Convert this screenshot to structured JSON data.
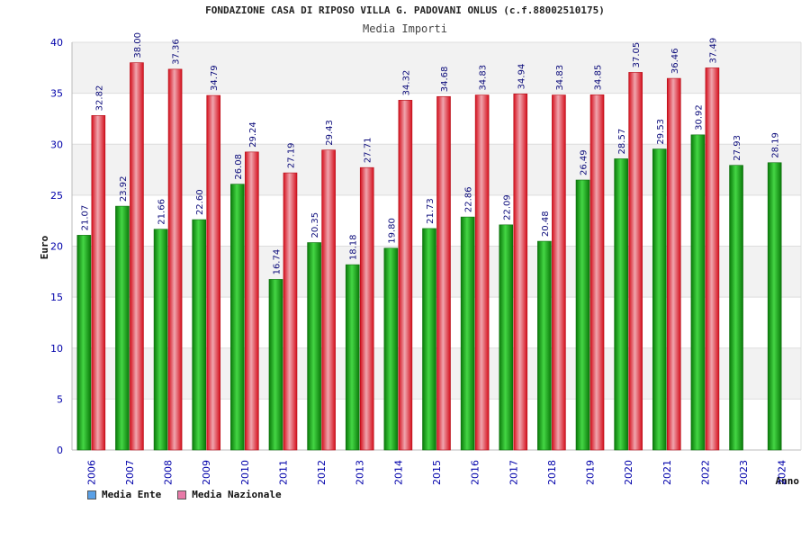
{
  "title": "FONDAZIONE CASA DI RIPOSO VILLA G. PADOVANI ONLUS (c.f.88002510175)",
  "subtitle": "Media Importi",
  "colors": {
    "ente": "#19b019",
    "nazionale": "#e8202a",
    "legend_ente": "#5aa0e6",
    "legend_nazionale": "#e87aa8",
    "axis_text": "#0000aa"
  },
  "legend": [
    {
      "label": "Media Ente"
    },
    {
      "label": "Media Nazionale"
    }
  ],
  "chart_data": {
    "type": "bar",
    "xlabel": "Anno",
    "ylabel": "Euro",
    "ylim": [
      0,
      40
    ],
    "yticks": [
      0,
      5,
      10,
      15,
      20,
      25,
      30,
      35,
      40
    ],
    "grid": true,
    "categories": [
      "2006",
      "2007",
      "2008",
      "2009",
      "2010",
      "2011",
      "2012",
      "2013",
      "2014",
      "2015",
      "2016",
      "2017",
      "2018",
      "2019",
      "2020",
      "2021",
      "2022",
      "2023",
      "2024"
    ],
    "series": [
      {
        "name": "Media Ente",
        "values": [
          21.07,
          23.92,
          21.66,
          22.6,
          26.08,
          16.74,
          20.35,
          18.18,
          19.8,
          21.73,
          22.86,
          22.09,
          20.48,
          26.49,
          28.57,
          29.53,
          30.92,
          27.93,
          28.19
        ],
        "labels": [
          "21.07",
          "23.92",
          "21.66",
          "22.60",
          "26.08",
          "16.74",
          "20.35",
          "18.18",
          "19.80",
          "21.73",
          "22.86",
          "22.09",
          "20.48",
          "26.49",
          "28.57",
          "29.53",
          "30.92",
          "27.93",
          "28.19"
        ]
      },
      {
        "name": "Media Nazionale",
        "values": [
          32.82,
          38.0,
          37.36,
          34.79,
          29.24,
          27.19,
          29.43,
          27.71,
          34.32,
          34.68,
          34.83,
          34.94,
          34.83,
          34.85,
          37.05,
          36.46,
          37.49,
          null,
          null
        ],
        "labels": [
          "32.82",
          "38.00",
          "37.36",
          "34.79",
          "29.24",
          "27.19",
          "29.43",
          "27.71",
          "34.32",
          "34.68",
          "34.83",
          "34.94",
          "34.83",
          "34.85",
          "37.05",
          "36.46",
          "37.49",
          "",
          ""
        ]
      }
    ]
  }
}
